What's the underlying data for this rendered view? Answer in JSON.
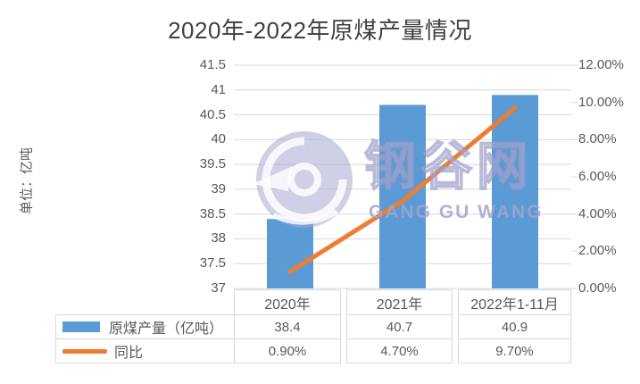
{
  "title": "2020年-2022年原煤产量情况",
  "y_axis_unit_label": "单位：亿吨",
  "watermark": {
    "cn": "钢谷网",
    "en": "GANG GU WANG"
  },
  "colors": {
    "bar": "#5B9BD5",
    "line": "#ED7D31",
    "grid": "#D9D9D9",
    "axis_text": "#595959",
    "title_text": "#404040",
    "table_border": "#D9D9D9",
    "watermark": "#A8A8D2"
  },
  "chart_data": {
    "type": "bar",
    "subtype": "bar+line combo",
    "title": "2020年-2022年原煤产量情况",
    "categories": [
      "2020年",
      "2021年",
      "2022年1-11月"
    ],
    "series": [
      {
        "name": "原煤产量（亿吨）",
        "type": "bar",
        "axis": "left",
        "values": [
          38.4,
          40.7,
          40.9
        ]
      },
      {
        "name": "同比",
        "type": "line",
        "axis": "right",
        "values": [
          0.9,
          4.7,
          9.7
        ]
      }
    ],
    "left_axis": {
      "min": 37,
      "max": 41.5,
      "step": 0.5,
      "unit": "亿吨"
    },
    "right_axis": {
      "min": 0,
      "max": 12,
      "step": 2,
      "format": "percent2"
    },
    "grid": true,
    "legend_position": "data-table-below"
  },
  "table": {
    "header": [
      "2020年",
      "2021年",
      "2022年1-11月"
    ],
    "rows": [
      {
        "legend": "bar-swatch",
        "label": "原煤产量（亿吨）",
        "values": [
          "38.4",
          "40.7",
          "40.9"
        ]
      },
      {
        "legend": "line-swatch",
        "label": "同比",
        "values": [
          "0.90%",
          "4.70%",
          "9.70%"
        ]
      }
    ]
  }
}
